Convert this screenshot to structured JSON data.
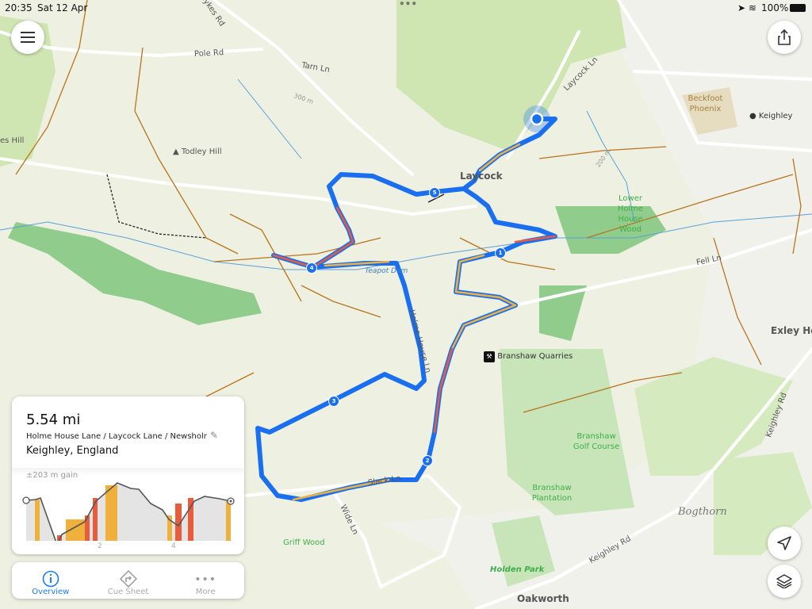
{
  "status_bar": {
    "time": "20:35",
    "date": "Sat 12 Apr",
    "battery": "100%"
  },
  "map": {
    "roads": [
      "Pole Rd",
      "Tarn Ln",
      "Sykes Rd",
      "Laycock Ln",
      "Fell Ln",
      "Holme House Ln",
      "Slack Ln",
      "Wide Ln",
      "Keighley Rd",
      "Keighley Rd"
    ],
    "places": [
      "Laycock",
      "Todley Hill",
      "Beckfoot Phoenix",
      "Keighley",
      "Lower Holme House Wood",
      "Teapot Dam",
      "Branshaw Quarries",
      "Branshaw Golf Course",
      "Branshaw Plantation",
      "Bogthorn",
      "Griff Wood",
      "Holden Park",
      "Oakworth",
      "Exley He",
      "es Hill"
    ],
    "contours": [
      "300 m",
      "200 m"
    ],
    "route_markers": [
      "1",
      "2",
      "3",
      "4",
      "5"
    ],
    "route_color": "#1a6ff0",
    "steep_colors": {
      "moderate": "#f0b13c",
      "steep": "#ea5a3c"
    }
  },
  "route_card": {
    "distance": "5.54 mi",
    "name": "Holme House Lane / Laycock Lane / Newsholm…",
    "location": "Keighley, England",
    "elevation_gain": "±203 m gain",
    "x_ticks": [
      "2",
      "4"
    ]
  },
  "bottom_tabs": [
    {
      "label": "Overview",
      "icon": "info-icon",
      "active": true
    },
    {
      "label": "Cue Sheet",
      "icon": "turn-right-diamond-icon"
    },
    {
      "label": "More",
      "icon": "more-dots-icon"
    }
  ],
  "buttons": {
    "menu": "menu-icon",
    "share": "share-icon",
    "locate": "location-arrow-icon",
    "layers": "layers-icon"
  }
}
